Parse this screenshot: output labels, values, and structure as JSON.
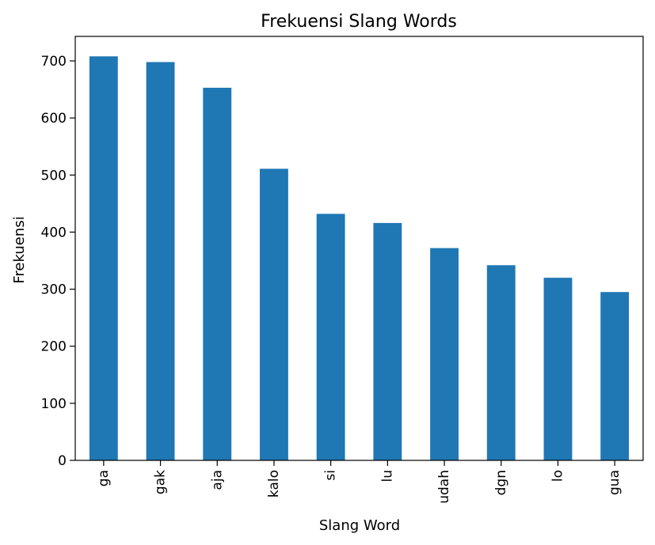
{
  "chart_data": {
    "type": "bar",
    "title": "Frekuensi Slang Words",
    "xlabel": "Slang Word",
    "ylabel": "Frekuensi",
    "categories": [
      "ga",
      "gak",
      "aja",
      "kalo",
      "si",
      "lu",
      "udah",
      "dgn",
      "lo",
      "gua"
    ],
    "values": [
      708,
      698,
      653,
      511,
      432,
      416,
      372,
      342,
      320,
      295
    ],
    "yticks": [
      0,
      100,
      200,
      300,
      400,
      500,
      600,
      700
    ],
    "ylim": [
      0,
      743
    ],
    "bar_color": "#1f77b4",
    "grid": false,
    "legend": "none"
  }
}
